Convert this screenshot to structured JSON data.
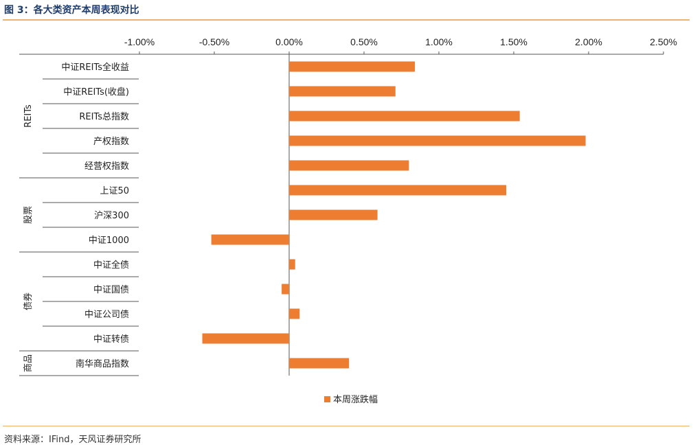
{
  "header": {
    "title": "图 3：各大类资产本周表现对比"
  },
  "footer": {
    "source": "资料来源：IFind，天风证券研究所"
  },
  "colors": {
    "bar": "#ED7D31",
    "accent_rule": "#F0B070"
  },
  "chart_data": {
    "type": "bar",
    "orientation": "horizontal",
    "x_ticks": [
      "-1.00%",
      "-0.50%",
      "0.00%",
      "0.50%",
      "1.00%",
      "1.50%",
      "2.00%",
      "2.50%"
    ],
    "xlim": [
      -0.01,
      0.025
    ],
    "x_axis_position": "top",
    "groups": [
      {
        "name": "REITs",
        "categories": [
          "中证REITs全收益",
          "中证REITs(收盘)",
          "REITs总指数",
          "产权指数",
          "经营权指数"
        ]
      },
      {
        "name": "股票",
        "categories": [
          "上证50",
          "沪深300",
          "中证1000"
        ]
      },
      {
        "name": "债券",
        "categories": [
          "中证全债",
          "中证国债",
          "中证公司债",
          "中证转债"
        ]
      },
      {
        "name": "商品",
        "categories": [
          "南华商品指数"
        ]
      }
    ],
    "categories": [
      "中证REITs全收益",
      "中证REITs(收盘)",
      "REITs总指数",
      "产权指数",
      "经营权指数",
      "上证50",
      "沪深300",
      "中证1000",
      "中证全债",
      "中证国债",
      "中证公司债",
      "中证转债",
      "南华商品指数"
    ],
    "series": [
      {
        "name": "本周涨跌幅",
        "values": [
          0.0084,
          0.0071,
          0.0154,
          0.0198,
          0.008,
          0.0145,
          0.0059,
          -0.0052,
          0.0004,
          -0.0005,
          0.0007,
          -0.0058,
          0.004
        ]
      }
    ],
    "legend": {
      "position": "bottom-center"
    },
    "grid": false
  }
}
